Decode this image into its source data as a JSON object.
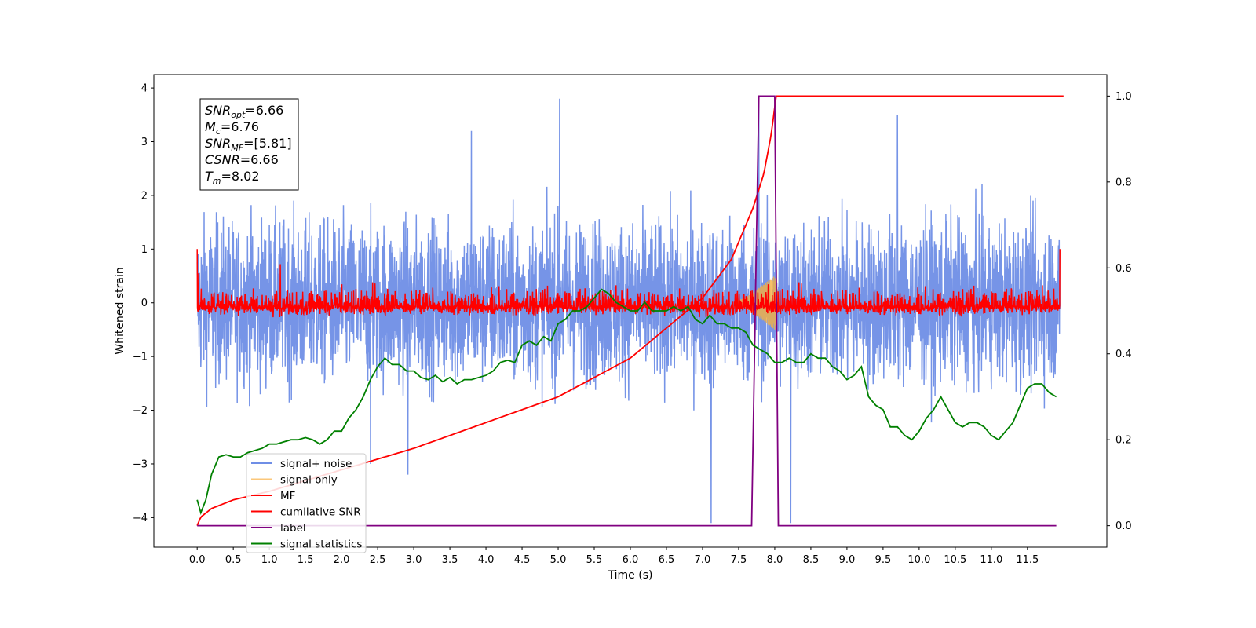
{
  "chart_data": {
    "type": "line",
    "xlabel": "Time (s)",
    "ylabel": "Whitened strain",
    "xlim": [
      -0.6,
      12.6
    ],
    "ylim": [
      -4.55,
      4.25
    ],
    "ylim_right": [
      -0.05,
      1.05
    ],
    "x_ticks": [
      0.0,
      0.5,
      1.0,
      1.5,
      2.0,
      2.5,
      3.0,
      3.5,
      4.0,
      4.5,
      5.0,
      5.5,
      6.0,
      6.5,
      7.0,
      7.5,
      8.0,
      8.5,
      9.0,
      9.5,
      10.0,
      10.5,
      11.0,
      11.5
    ],
    "x_tick_labels": [
      "0.0",
      "0.5",
      "1.0",
      "1.5",
      "2.0",
      "2.5",
      "3.0",
      "3.5",
      "4.0",
      "4.5",
      "5.0",
      "5.5",
      "6.0",
      "6.5",
      "7.0",
      "7.5",
      "8.0",
      "8.5",
      "9.0",
      "9.5",
      "10.0",
      "10.5",
      "11.0",
      "11.5"
    ],
    "y_ticks": [
      -4,
      -3,
      -2,
      -1,
      0,
      1,
      2,
      3,
      4
    ],
    "y_tick_labels": [
      "−4",
      "−3",
      "−2",
      "−1",
      "0",
      "1",
      "2",
      "3",
      "4"
    ],
    "y_right_ticks": [
      0.0,
      0.2,
      0.4,
      0.6,
      0.8,
      1.0
    ],
    "y_right_tick_labels": [
      "0.0",
      "0.2",
      "0.4",
      "0.6",
      "0.8",
      "1.0"
    ],
    "legend_placement": "lower-left",
    "annotation": {
      "lines": [
        {
          "var": "SNR",
          "sub": "opt",
          "value": "=6.66"
        },
        {
          "var": "M",
          "sub": "c",
          "value": "=6.76"
        },
        {
          "var": "SNR",
          "sub": "MF",
          "value": "=[5.81]"
        },
        {
          "var": "CSNR",
          "sub": "",
          "value": "=6.66"
        },
        {
          "var": "T",
          "sub": "m",
          "value": "=8.02"
        }
      ]
    },
    "series": [
      {
        "name": "signal+ noise",
        "color": "#6f8ee6",
        "axis": "left",
        "style": "noise",
        "x_start": 0.0,
        "x_end": 11.95,
        "sigma": 0.75,
        "spikes": [
          [
            5.02,
            3.87
          ],
          [
            7.12,
            -4.15
          ],
          [
            8.22,
            -4.1
          ],
          [
            2.92,
            -3.2
          ],
          [
            7.78,
            3.85
          ],
          [
            2.4,
            -3.0
          ],
          [
            3.8,
            3.2
          ],
          [
            9.7,
            3.5
          ]
        ]
      },
      {
        "name": "signal only",
        "color": "#f5b041",
        "axis": "left",
        "style": "chirp",
        "x": [
          7.5,
          7.6,
          7.7,
          7.8,
          7.9,
          7.95,
          8.0,
          8.02,
          8.05
        ],
        "amp": [
          0.05,
          0.1,
          0.2,
          0.3,
          0.4,
          0.45,
          0.5,
          0.4,
          0.0
        ]
      },
      {
        "name": "MF",
        "color": "#ff0000",
        "axis": "left",
        "style": "mf",
        "x_start": 0.0,
        "x_end": 11.95,
        "sigma": 0.18,
        "spikes": [
          [
            0.0,
            1.0
          ],
          [
            11.95,
            1.0
          ],
          [
            1.15,
            0.72
          ],
          [
            0.02,
            0.55
          ]
        ]
      },
      {
        "name": "cumilative SNR",
        "color": "#ff0000",
        "axis": "right",
        "x": [
          0.0,
          0.05,
          0.2,
          0.5,
          1.0,
          2.0,
          3.0,
          4.0,
          5.0,
          6.0,
          7.0,
          7.4,
          7.7,
          7.85,
          7.95,
          8.02,
          12.0
        ],
        "y": [
          0.0,
          0.02,
          0.04,
          0.06,
          0.08,
          0.13,
          0.18,
          0.24,
          0.3,
          0.39,
          0.53,
          0.62,
          0.74,
          0.82,
          0.91,
          1.0,
          1.0
        ]
      },
      {
        "name": "label",
        "color": "#800080",
        "axis": "right",
        "x": [
          0.0,
          7.68,
          7.78,
          8.0,
          8.05,
          11.9
        ],
        "y": [
          0.0,
          0.0,
          1.0,
          1.0,
          0.0,
          0.0
        ]
      },
      {
        "name": "signal statistics",
        "color": "#008000",
        "axis": "right",
        "x": [
          0.0,
          0.05,
          0.12,
          0.2,
          0.3,
          0.4,
          0.5,
          0.6,
          0.7,
          0.8,
          0.9,
          1.0,
          1.1,
          1.2,
          1.3,
          1.4,
          1.5,
          1.6,
          1.7,
          1.8,
          1.9,
          2.0,
          2.1,
          2.2,
          2.3,
          2.4,
          2.5,
          2.6,
          2.7,
          2.8,
          2.9,
          3.0,
          3.1,
          3.2,
          3.3,
          3.4,
          3.5,
          3.6,
          3.7,
          3.8,
          3.9,
          4.0,
          4.1,
          4.2,
          4.3,
          4.4,
          4.5,
          4.6,
          4.7,
          4.8,
          4.9,
          5.0,
          5.1,
          5.2,
          5.3,
          5.4,
          5.5,
          5.6,
          5.7,
          5.8,
          5.9,
          6.0,
          6.1,
          6.2,
          6.3,
          6.4,
          6.5,
          6.6,
          6.7,
          6.8,
          6.9,
          7.0,
          7.1,
          7.2,
          7.3,
          7.4,
          7.5,
          7.6,
          7.7,
          7.8,
          7.9,
          8.0,
          8.1,
          8.2,
          8.3,
          8.4,
          8.5,
          8.6,
          8.7,
          8.8,
          8.9,
          9.0,
          9.1,
          9.2,
          9.3,
          9.4,
          9.5,
          9.6,
          9.7,
          9.8,
          9.9,
          10.0,
          10.1,
          10.2,
          10.3,
          10.4,
          10.5,
          10.6,
          10.7,
          10.8,
          10.9,
          11.0,
          11.1,
          11.2,
          11.3,
          11.4,
          11.5,
          11.6,
          11.7,
          11.8,
          11.9
        ],
        "y": [
          0.06,
          0.03,
          0.06,
          0.12,
          0.16,
          0.165,
          0.16,
          0.16,
          0.17,
          0.175,
          0.18,
          0.19,
          0.19,
          0.195,
          0.2,
          0.2,
          0.205,
          0.2,
          0.19,
          0.2,
          0.22,
          0.22,
          0.25,
          0.27,
          0.3,
          0.34,
          0.37,
          0.39,
          0.375,
          0.375,
          0.36,
          0.36,
          0.345,
          0.34,
          0.35,
          0.335,
          0.345,
          0.33,
          0.34,
          0.34,
          0.345,
          0.35,
          0.36,
          0.38,
          0.385,
          0.38,
          0.42,
          0.43,
          0.42,
          0.44,
          0.43,
          0.47,
          0.48,
          0.5,
          0.5,
          0.51,
          0.53,
          0.55,
          0.54,
          0.52,
          0.51,
          0.5,
          0.5,
          0.52,
          0.5,
          0.5,
          0.5,
          0.51,
          0.5,
          0.51,
          0.48,
          0.47,
          0.49,
          0.47,
          0.47,
          0.46,
          0.46,
          0.45,
          0.42,
          0.41,
          0.4,
          0.38,
          0.38,
          0.39,
          0.38,
          0.38,
          0.4,
          0.39,
          0.39,
          0.37,
          0.36,
          0.34,
          0.35,
          0.37,
          0.3,
          0.28,
          0.27,
          0.23,
          0.23,
          0.21,
          0.2,
          0.22,
          0.25,
          0.27,
          0.3,
          0.27,
          0.24,
          0.23,
          0.24,
          0.24,
          0.23,
          0.21,
          0.2,
          0.22,
          0.24,
          0.28,
          0.32,
          0.33,
          0.33,
          0.31,
          0.3
        ]
      }
    ]
  }
}
